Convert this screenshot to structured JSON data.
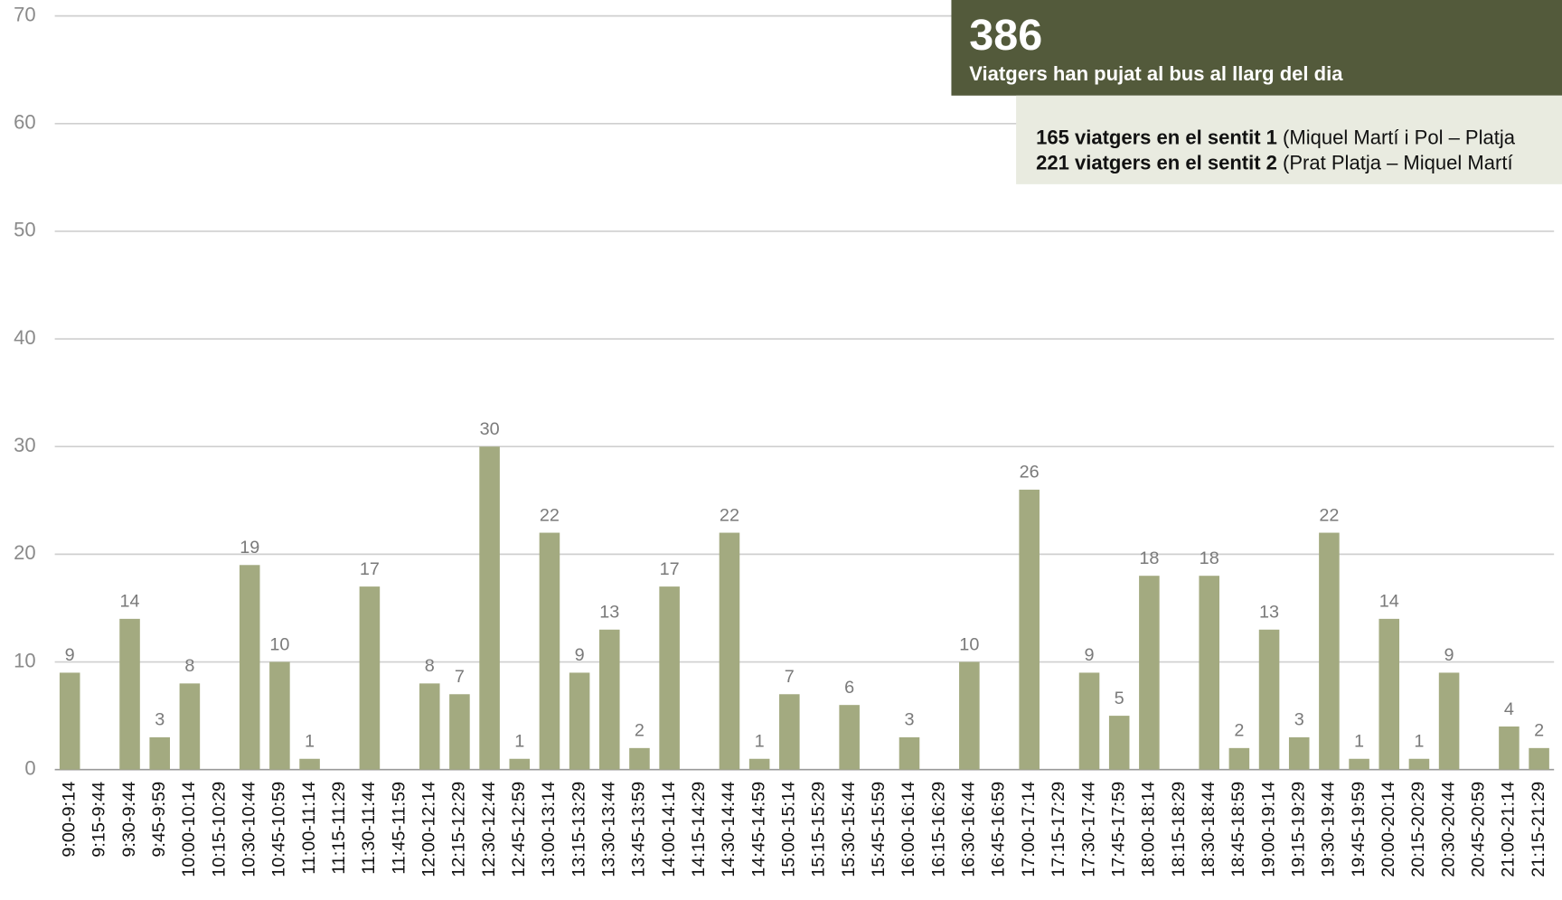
{
  "chart_data": {
    "type": "bar",
    "categories": [
      "9:00-9:14",
      "9:15-9:44",
      "9:30-9:44",
      "9:45-9:59",
      "10:00-10:14",
      "10:15-10:29",
      "10:30-10:44",
      "10:45-10:59",
      "11:00-11:14",
      "11:15-11:29",
      "11:30-11:44",
      "11:45-11:59",
      "12:00-12:14",
      "12:15-12:29",
      "12:30-12:44",
      "12:45-12:59",
      "13:00-13:14",
      "13:15-13:29",
      "13:30-13:44",
      "13:45-13:59",
      "14:00-14:14",
      "14:15-14:29",
      "14:30-14:44",
      "14:45-14:59",
      "15:00-15:14",
      "15:15-15:29",
      "15:30-15:44",
      "15:45-15:59",
      "16:00-16:14",
      "16:15-16:29",
      "16:30-16:44",
      "16:45-16:59",
      "17:00-17:14",
      "17:15-17:29",
      "17:30-17:44",
      "17:45-17:59",
      "18:00-18:14",
      "18:15-18:29",
      "18:30-18:44",
      "18:45-18:59",
      "19:00-19:14",
      "19:15-19:29",
      "19:30-19:44",
      "19:45-19:59",
      "20:00-20:14",
      "20:15-20:29",
      "20:30-20:44",
      "20:45-20:59",
      "21:00-21:14",
      "21:15-21:29"
    ],
    "values": [
      9,
      null,
      14,
      3,
      8,
      null,
      19,
      10,
      1,
      null,
      17,
      null,
      8,
      7,
      30,
      1,
      22,
      9,
      13,
      2,
      17,
      null,
      22,
      1,
      7,
      null,
      6,
      null,
      3,
      null,
      10,
      null,
      26,
      null,
      9,
      5,
      18,
      null,
      18,
      2,
      13,
      3,
      22,
      1,
      14,
      1,
      9,
      null,
      4,
      2
    ],
    "color": "#a3aa80",
    "ylim": [
      0,
      70
    ],
    "yticks": [
      0,
      10,
      20,
      30,
      40,
      50,
      60,
      70
    ],
    "grid": true
  },
  "info": {
    "total": "386",
    "subtitle": "Viatgers han pujat al bus al llarg del dia",
    "lines": [
      {
        "bold": "165 viatgers en el sentit 1",
        "rest": " (Miquel Martí i Pol – Platja"
      },
      {
        "bold": "221 viatgers en el sentit 2",
        "rest": " (Prat Platja – Miquel Martí"
      }
    ]
  }
}
